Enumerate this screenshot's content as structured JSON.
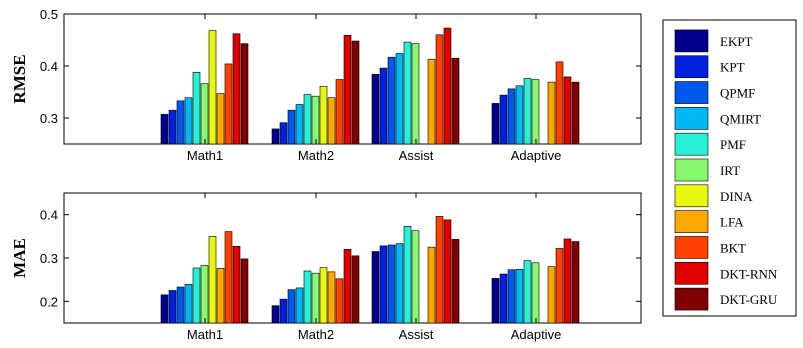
{
  "chart_data": [
    {
      "type": "bar",
      "ylabel": "RMSE",
      "ylim": [
        0.25,
        0.5
      ],
      "yticks": [
        0.3,
        0.4,
        0.5
      ],
      "ytick_labels": [
        "0.3",
        "0.4",
        "0.5"
      ],
      "grid": false,
      "categories": [
        "Math1",
        "Math2",
        "Assist",
        "Adaptive"
      ],
      "series": [
        {
          "name": "EKPT",
          "color": "#00008f",
          "values": [
            0.307,
            0.279,
            0.384,
            0.328
          ]
        },
        {
          "name": "KPT",
          "color": "#0020e0",
          "values": [
            0.315,
            0.291,
            0.396,
            0.344
          ]
        },
        {
          "name": "QPMF",
          "color": "#0058ec",
          "values": [
            0.333,
            0.315,
            0.417,
            0.356
          ]
        },
        {
          "name": "QMIRT",
          "color": "#00b8f4",
          "values": [
            0.339,
            0.326,
            0.424,
            0.362
          ]
        },
        {
          "name": "PMF",
          "color": "#28f0d8",
          "values": [
            0.388,
            0.345,
            0.446,
            0.376
          ]
        },
        {
          "name": "IRT",
          "color": "#88f870",
          "values": [
            0.366,
            0.342,
            0.443,
            0.374
          ]
        },
        {
          "name": "DINA",
          "color": "#e8f810",
          "values": [
            0.468,
            0.361,
            null,
            null
          ]
        },
        {
          "name": "LFA",
          "color": "#ffa800",
          "values": [
            0.347,
            0.339,
            0.413,
            0.369
          ]
        },
        {
          "name": "BKT",
          "color": "#ff4000",
          "values": [
            0.404,
            0.374,
            0.46,
            0.408
          ]
        },
        {
          "name": "DKT-RNN",
          "color": "#e00000",
          "values": [
            0.462,
            0.459,
            0.473,
            0.379
          ]
        },
        {
          "name": "DKT-GRU",
          "color": "#800000",
          "values": [
            0.443,
            0.448,
            0.415,
            0.369
          ]
        }
      ]
    },
    {
      "type": "bar",
      "ylabel": "MAE",
      "ylim": [
        0.15,
        0.45
      ],
      "yticks": [
        0.2,
        0.3,
        0.4
      ],
      "ytick_labels": [
        "0.2",
        "0.3",
        "0.4"
      ],
      "grid": false,
      "categories": [
        "Math1",
        "Math2",
        "Assist",
        "Adaptive"
      ],
      "series": [
        {
          "name": "EKPT",
          "color": "#00008f",
          "values": [
            0.215,
            0.19,
            0.315,
            0.253
          ]
        },
        {
          "name": "KPT",
          "color": "#0020e0",
          "values": [
            0.225,
            0.205,
            0.328,
            0.263
          ]
        },
        {
          "name": "QPMF",
          "color": "#0058ec",
          "values": [
            0.233,
            0.227,
            0.33,
            0.273
          ]
        },
        {
          "name": "QMIRT",
          "color": "#00b8f4",
          "values": [
            0.239,
            0.231,
            0.333,
            0.274
          ]
        },
        {
          "name": "PMF",
          "color": "#28f0d8",
          "values": [
            0.277,
            0.27,
            0.373,
            0.294
          ]
        },
        {
          "name": "IRT",
          "color": "#88f870",
          "values": [
            0.283,
            0.265,
            0.363,
            0.289
          ]
        },
        {
          "name": "DINA",
          "color": "#e8f810",
          "values": [
            0.35,
            0.278,
            null,
            null
          ]
        },
        {
          "name": "LFA",
          "color": "#ffa800",
          "values": [
            0.276,
            0.268,
            0.325,
            0.28
          ]
        },
        {
          "name": "BKT",
          "color": "#ff4000",
          "values": [
            0.361,
            0.252,
            0.396,
            0.322
          ]
        },
        {
          "name": "DKT-RNN",
          "color": "#e00000",
          "values": [
            0.327,
            0.32,
            0.388,
            0.344
          ]
        },
        {
          "name": "DKT-GRU",
          "color": "#800000",
          "values": [
            0.298,
            0.305,
            0.343,
            0.338
          ]
        }
      ]
    }
  ],
  "legend": {
    "placement": "right",
    "items": [
      "EKPT",
      "KPT",
      "QPMF",
      "QMIRT",
      "PMF",
      "IRT",
      "DINA",
      "LFA",
      "BKT",
      "DKT-RNN",
      "DKT-GRU"
    ]
  }
}
